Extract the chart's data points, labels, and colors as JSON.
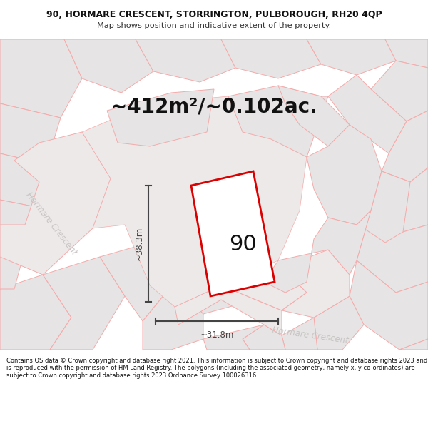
{
  "title_line1": "90, HORMARE CRESCENT, STORRINGTON, PULBOROUGH, RH20 4QP",
  "title_line2": "Map shows position and indicative extent of the property.",
  "area_text": "~412m²/~0.102ac.",
  "label_90": "90",
  "dim_width": "~31.8m",
  "dim_height": "~38.3m",
  "road_label1": "Hormare Crescent",
  "road_label2": "Hormare Crescent",
  "footer_text": "Contains OS data © Crown copyright and database right 2021. This information is subject to Crown copyright and database rights 2023 and is reproduced with the permission of HM Land Registry. The polygons (including the associated geometry, namely x, y co-ordinates) are subject to Crown copyright and database rights 2023 Ordnance Survey 100026316.",
  "map_bg": "#f2f0f0",
  "parcel_fill": "#e6e4e4",
  "parcel_stroke": "#f5aaaa",
  "road_fill": "#ede9e9",
  "plot_fill": "#ffffff",
  "plot_stroke": "#dd0000",
  "dim_color": "#444444",
  "title_bg": "#ffffff",
  "footer_bg": "#ffffff",
  "road_label_color": "#c8c4c4"
}
